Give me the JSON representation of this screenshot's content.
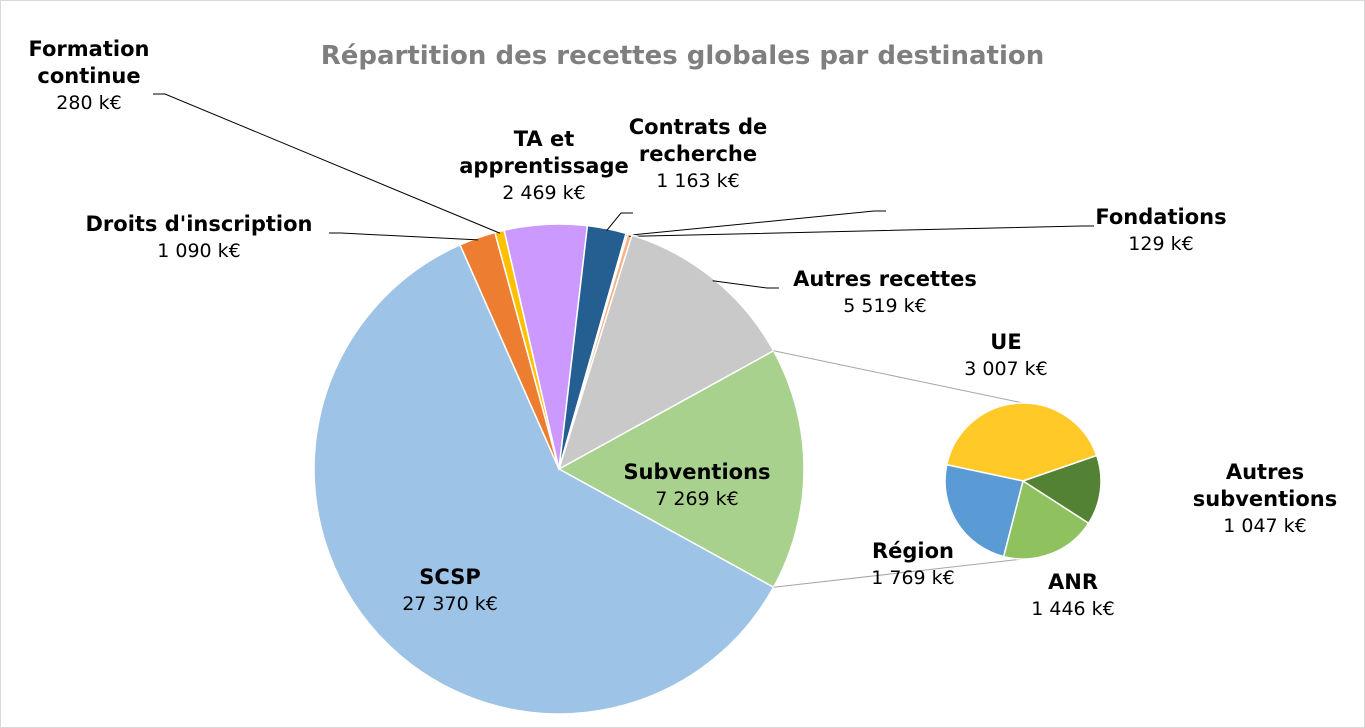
{
  "chart_data": {
    "type": "pie-of-pie",
    "title": "Répartition des recettes globales par destination",
    "categories": [
      "Subventions",
      "SCSP",
      "Droits d'inscription",
      "Formation continue",
      "TA et apprentissage",
      "Contrats de recherche",
      null,
      "Fondations",
      "Autres recettes"
    ],
    "values": [
      7269,
      27370,
      1090,
      280,
      2469,
      1163,
      50,
      129,
      5519
    ],
    "value_labels": [
      "7 269 k€",
      "27 370 k€",
      "1 090 k€",
      "280 k€",
      "2 469 k€",
      "1 163 k€",
      null,
      "129 k€",
      "5 519 k€"
    ],
    "colors": [
      "#a9d18e",
      "#9dc3e6",
      "#ed7d31",
      "#ffc000",
      "#cc99ff",
      "#255e91",
      "#c55a11",
      "#f4b183",
      "#c9c9c9"
    ],
    "secondary": {
      "categories": [
        "UE",
        "Autres subventions",
        "ANR",
        "Région"
      ],
      "values": [
        3007,
        1047,
        1446,
        1769
      ],
      "value_labels": [
        "3 007 k€",
        "1 047 k€",
        "1 446 k€",
        "1 769 k€"
      ],
      "colors": [
        "#ffca28",
        "#548235",
        "#8fc15f",
        "#5b9bd5"
      ]
    }
  }
}
